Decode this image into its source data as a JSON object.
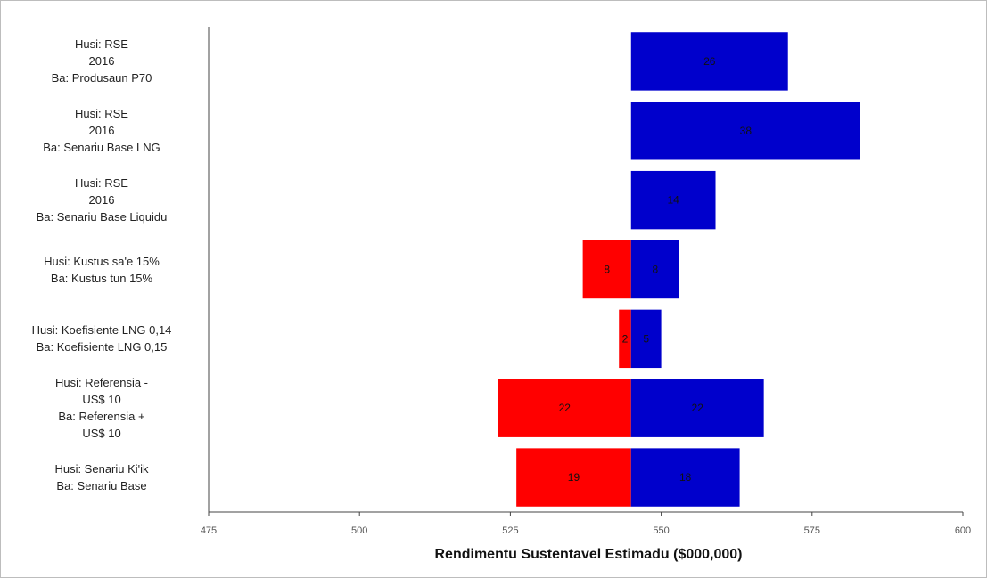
{
  "chart_data": {
    "type": "bar",
    "orientation": "horizontal",
    "subtype": "tornado",
    "title": "",
    "xlabel": "Rendimentu Sustentavel Estimadu ($000,000)",
    "ylabel": "",
    "base_value": 545,
    "xlim": [
      475,
      600
    ],
    "x_ticks": [
      475,
      500,
      525,
      550,
      575,
      600
    ],
    "grid": false,
    "legend": "none",
    "categories": [
      "Husi: RSE\n2016\nBa: Produsaun P70",
      "Husi: RSE\n2016\nBa: Senariu Base LNG",
      "Husi: RSE\n2016\nBa: Senariu Base Liquidu",
      "Husi: Kustus sa'e 15%\nBa: Kustus tun 15%",
      "Husi: Koefisiente LNG 0,14\nBa: Koefisiente LNG 0,15",
      "Husi: Referensia -\nUS$ 10\nBa: Referensia +\nUS$ 10",
      "Husi: Senariu Ki'ik\nBa: Senariu Base"
    ],
    "series": [
      {
        "color": "#ff0000",
        "values": [
          0,
          0,
          0,
          -8,
          -2,
          -22,
          -19
        ],
        "labels": [
          "",
          "",
          "",
          "8",
          "2",
          "22",
          "19"
        ]
      },
      {
        "color": "#0000cc",
        "values": [
          26,
          38,
          14,
          8,
          5,
          22,
          18
        ],
        "labels": [
          "26",
          "38",
          "14",
          "8",
          "5",
          "22",
          "18"
        ]
      }
    ]
  }
}
